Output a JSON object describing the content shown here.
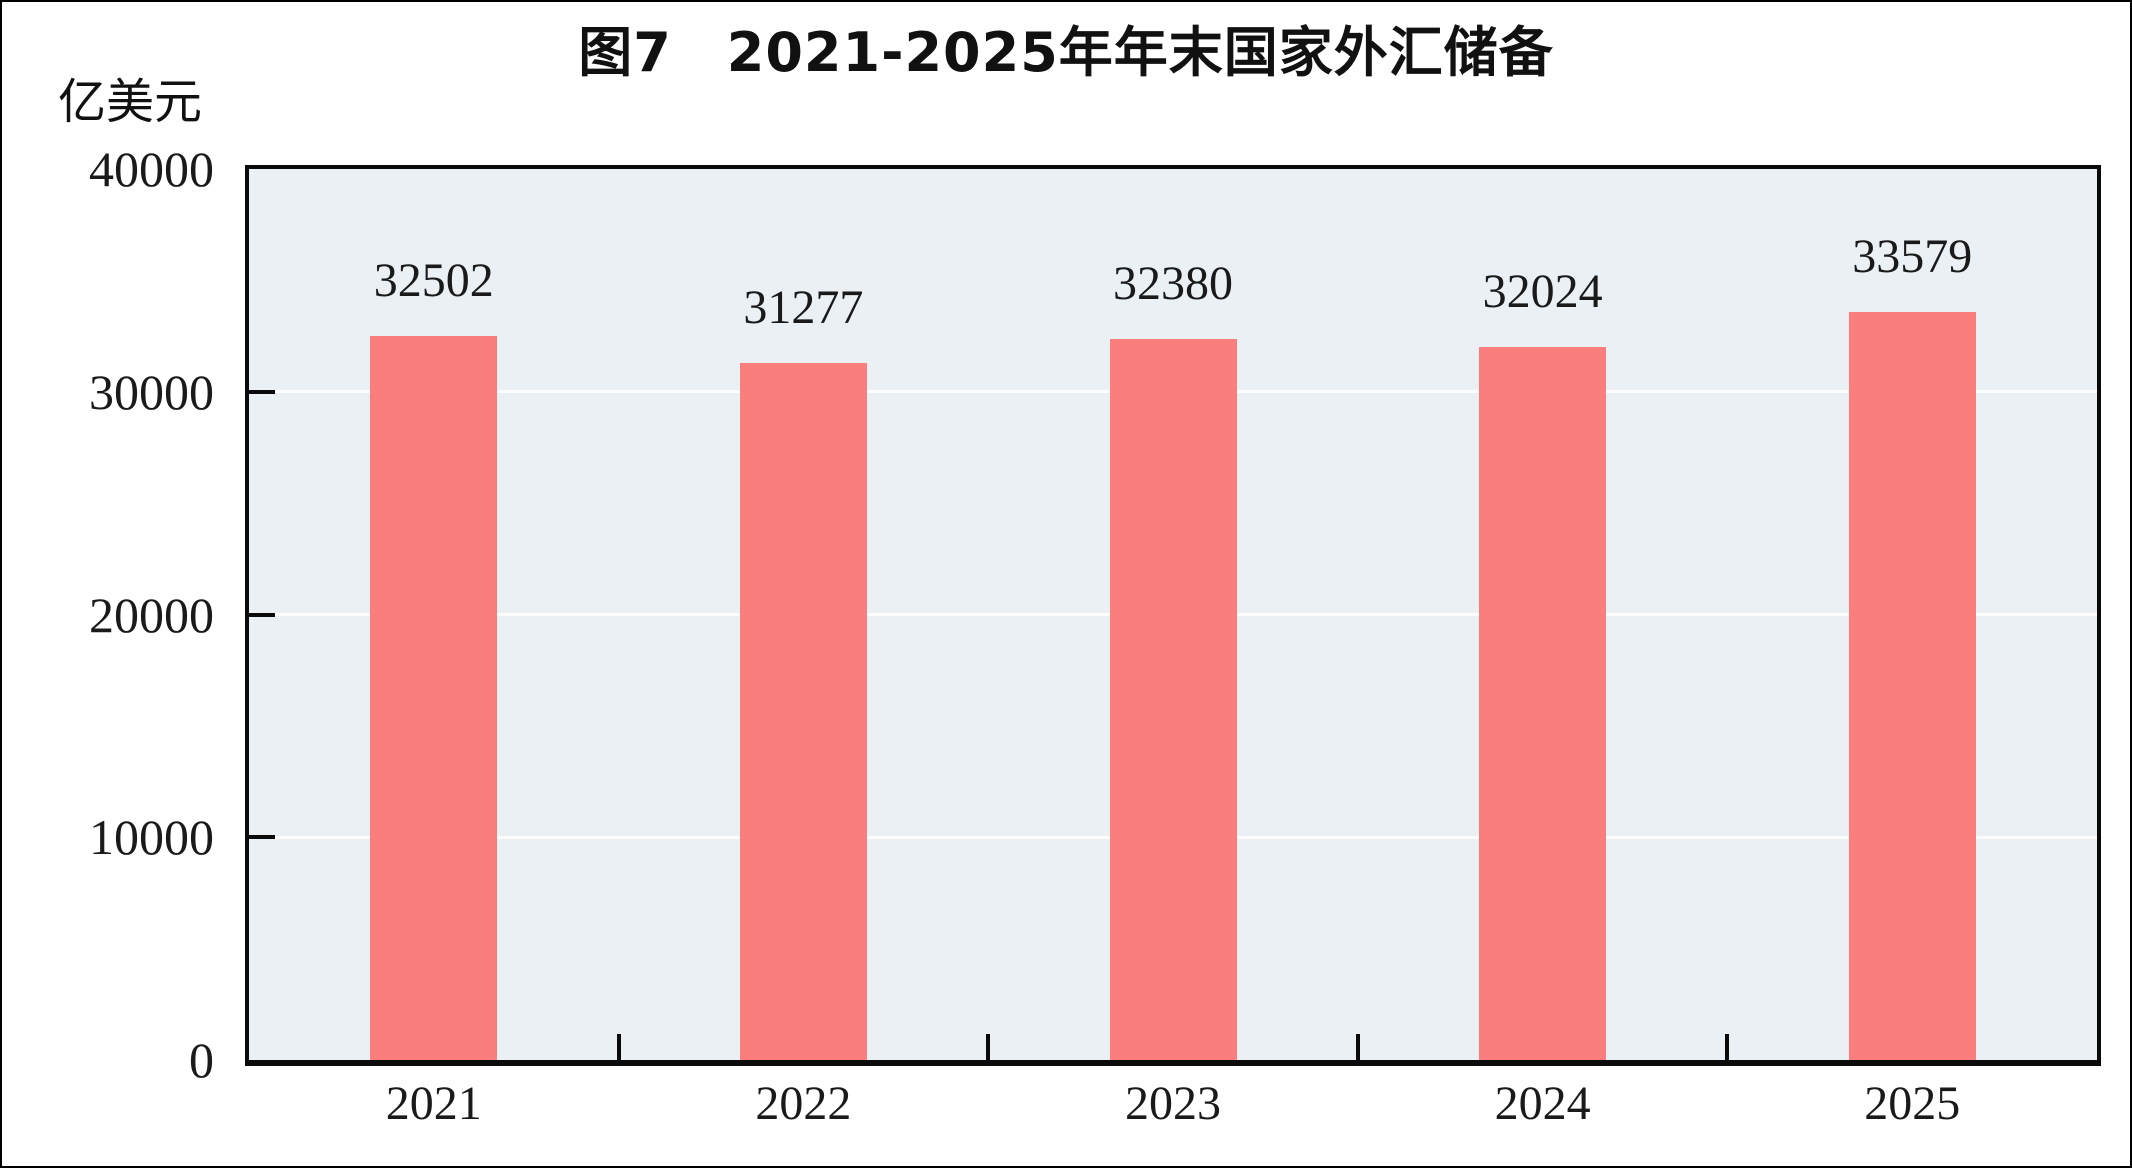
{
  "chart_data": {
    "type": "bar",
    "title": "图7　2021-2025年年末国家外汇储备",
    "ylabel": "亿美元",
    "xlabel": "",
    "categories": [
      "2021",
      "2022",
      "2023",
      "2024",
      "2025"
    ],
    "values": [
      32502,
      31277,
      32380,
      32024,
      33579
    ],
    "data_labels": [
      "32502",
      "31277",
      "32380",
      "32024",
      "33579"
    ],
    "ylim": [
      0,
      40000
    ],
    "y_ticks": [
      0,
      10000,
      20000,
      30000,
      40000
    ],
    "grid": "horizontal",
    "legend": "none",
    "colors": {
      "bar": "#fb7e7e",
      "plot_background": "#eaf0f4",
      "gridline": "#fdfdfd",
      "axis": "#0a0a0a",
      "text": "#1a1a1a",
      "page_background": "#ffffff"
    }
  }
}
